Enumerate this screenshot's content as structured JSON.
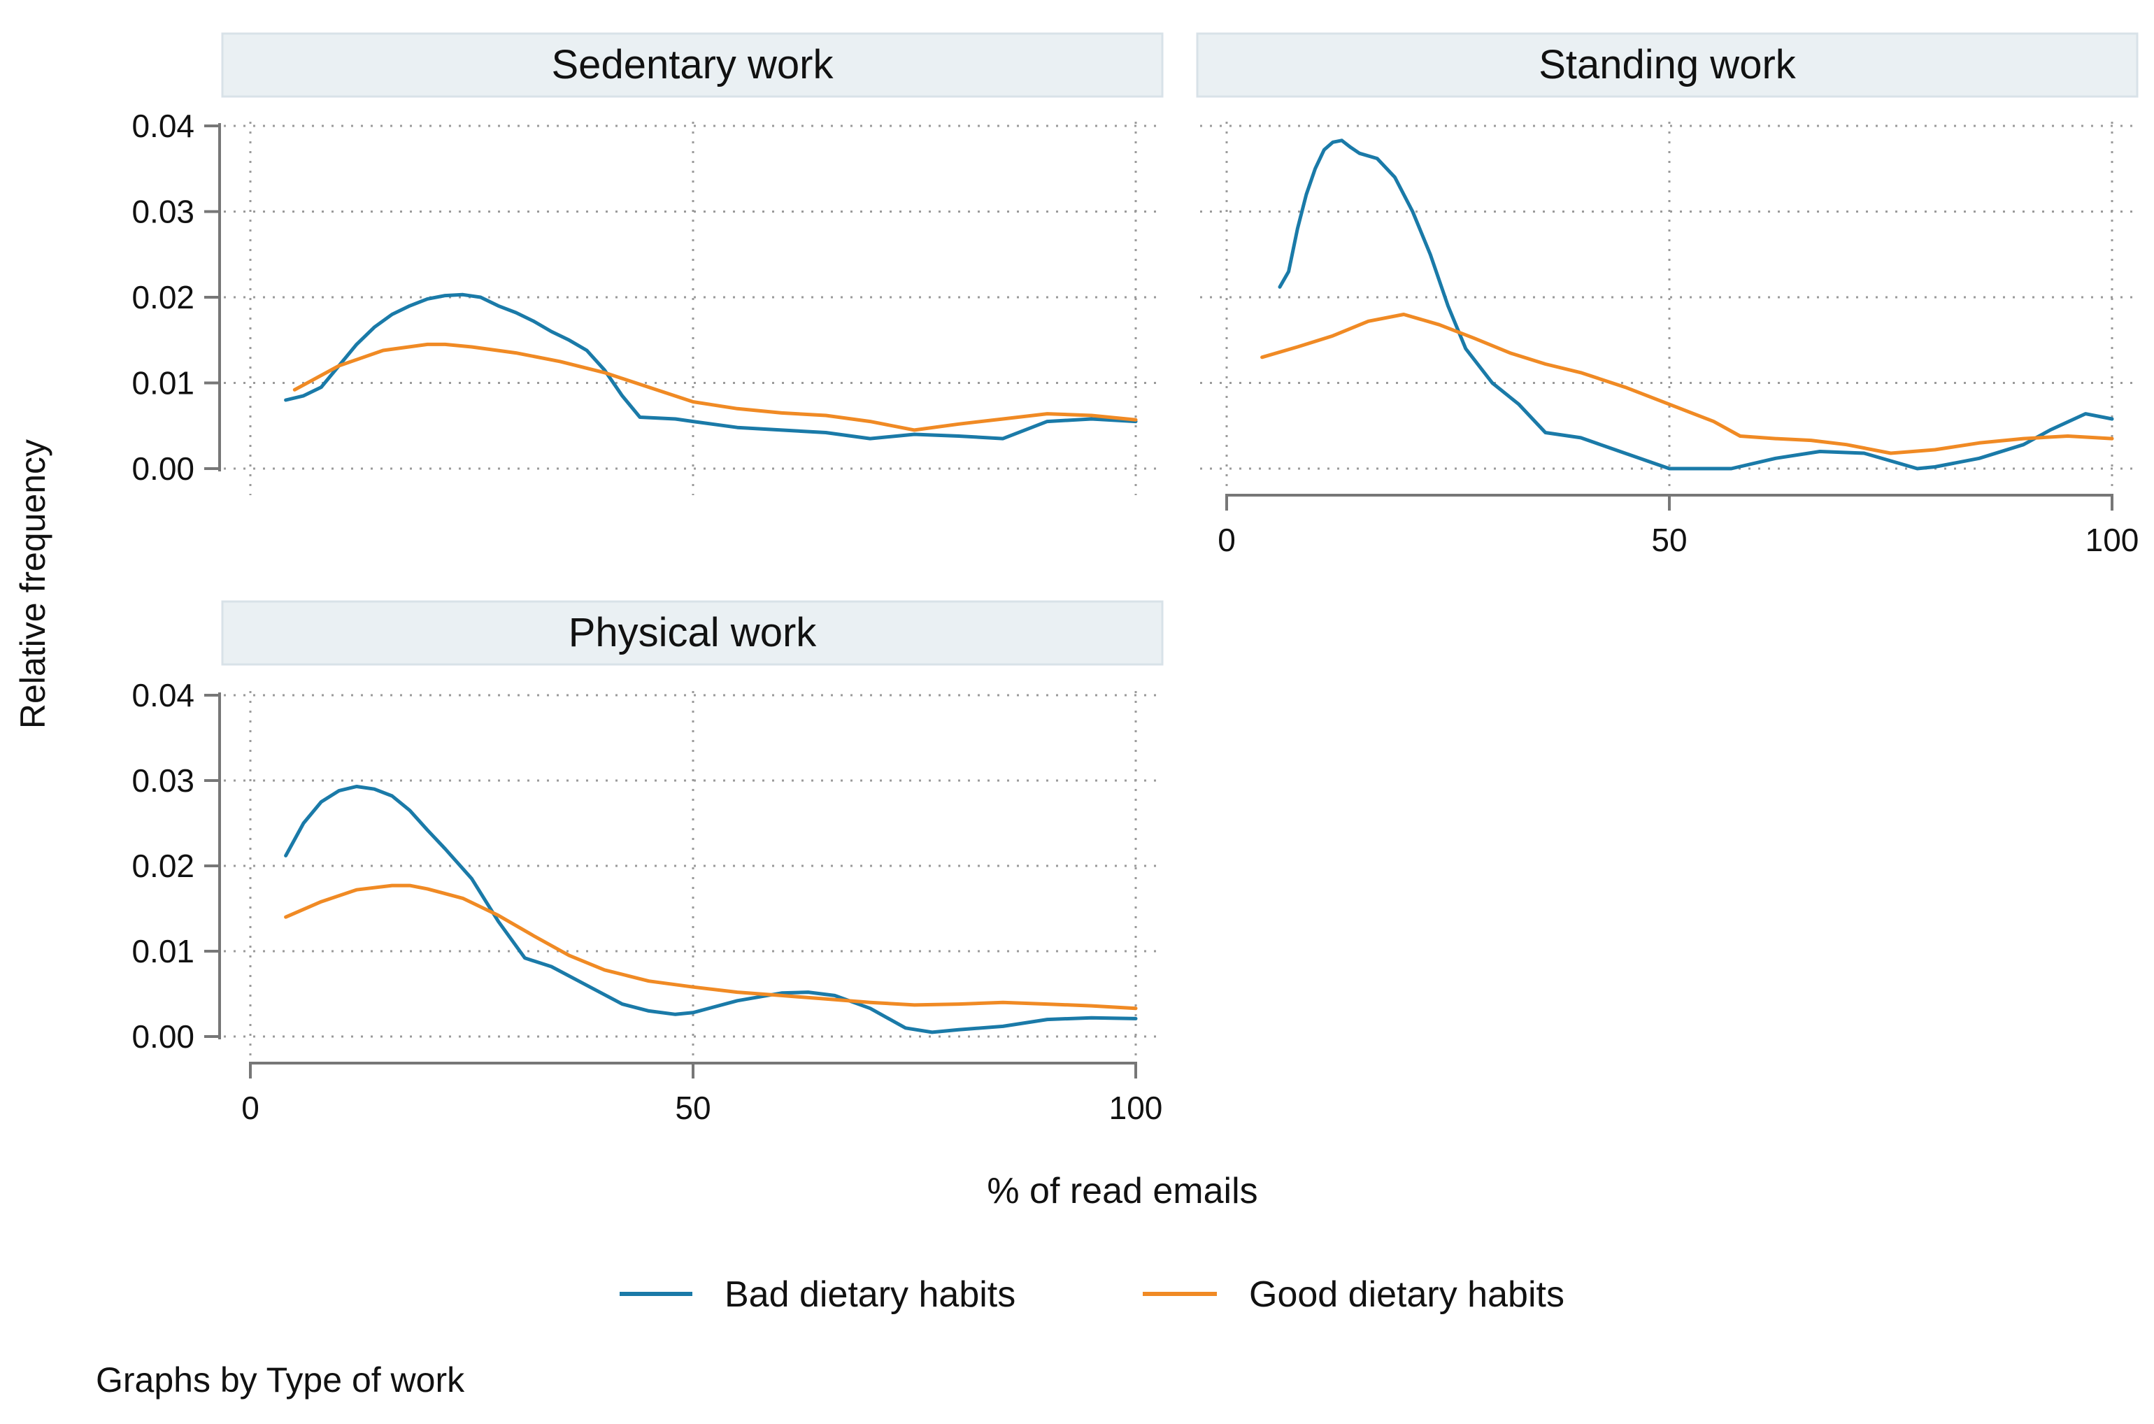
{
  "chart_data": {
    "type": "line",
    "ylabel": "Relative frequency",
    "xlabel": "% of read emails",
    "note": "Graphs by Type of work",
    "xlim": [
      0,
      100
    ],
    "ylim": [
      0,
      0.04
    ],
    "x_ticks": [
      "0",
      "50",
      "100"
    ],
    "x_tick_values": [
      0,
      50,
      100
    ],
    "y_ticks": [
      "0.00",
      "0.01",
      "0.02",
      "0.03",
      "0.04"
    ],
    "y_tick_values": [
      0,
      0.01,
      0.02,
      0.03,
      0.04
    ],
    "grid": true,
    "legend": {
      "position": "bottom",
      "items": [
        {
          "label": "Bad dietary habits",
          "color": "#1a7aa8"
        },
        {
          "label": "Good dietary habits",
          "color": "#f08a24"
        }
      ]
    },
    "panels": [
      {
        "title": "Sedentary work",
        "series": [
          {
            "name": "Bad dietary habits",
            "color": "#1a7aa8",
            "x": [
              4,
              6,
              8,
              10,
              12,
              14,
              16,
              18,
              20,
              22,
              24,
              26,
              28,
              30,
              32,
              34,
              36,
              38,
              40,
              42,
              44,
              48,
              50,
              55,
              60,
              65,
              70,
              75,
              80,
              85,
              90,
              95,
              100
            ],
            "y": [
              0.008,
              0.0085,
              0.0095,
              0.012,
              0.0145,
              0.0165,
              0.018,
              0.019,
              0.0198,
              0.0202,
              0.0203,
              0.02,
              0.019,
              0.0182,
              0.0172,
              0.016,
              0.015,
              0.0138,
              0.0115,
              0.0085,
              0.006,
              0.0058,
              0.0055,
              0.0048,
              0.0045,
              0.0042,
              0.0035,
              0.004,
              0.0038,
              0.0035,
              0.0055,
              0.0058,
              0.0055
            ]
          },
          {
            "name": "Good dietary habits",
            "color": "#f08a24",
            "x": [
              5,
              10,
              15,
              20,
              22,
              25,
              30,
              35,
              40,
              45,
              50,
              55,
              60,
              65,
              70,
              75,
              80,
              85,
              90,
              95,
              100
            ],
            "y": [
              0.0092,
              0.012,
              0.0138,
              0.0145,
              0.0145,
              0.0142,
              0.0135,
              0.0125,
              0.0112,
              0.0095,
              0.0078,
              0.007,
              0.0065,
              0.0062,
              0.0055,
              0.0045,
              0.0052,
              0.0058,
              0.0064,
              0.0062,
              0.0057
            ]
          }
        ]
      },
      {
        "title": "Standing work",
        "series": [
          {
            "name": "Bad dietary habits",
            "color": "#1a7aa8",
            "x": [
              6,
              7,
              8,
              9,
              10,
              11,
              12,
              13,
              14,
              15,
              17,
              19,
              21,
              23,
              25,
              27,
              30,
              33,
              36,
              40,
              45,
              50,
              57,
              62,
              67,
              72,
              76,
              78,
              80,
              85,
              90,
              93,
              97,
              100
            ],
            "y": [
              0.0212,
              0.023,
              0.028,
              0.032,
              0.035,
              0.0372,
              0.0381,
              0.0383,
              0.0375,
              0.0368,
              0.0362,
              0.034,
              0.03,
              0.025,
              0.019,
              0.014,
              0.01,
              0.0075,
              0.0042,
              0.0036,
              0.0018,
              0.0,
              0.0,
              0.0012,
              0.002,
              0.0018,
              0.0006,
              0.0,
              0.0002,
              0.0012,
              0.0028,
              0.0045,
              0.0064,
              0.0058
            ]
          },
          {
            "name": "Good dietary habits",
            "color": "#f08a24",
            "x": [
              4,
              8,
              12,
              16,
              20,
              24,
              28,
              32,
              36,
              40,
              45,
              50,
              55,
              58,
              62,
              66,
              70,
              75,
              80,
              85,
              90,
              95,
              100
            ],
            "y": [
              0.013,
              0.0142,
              0.0155,
              0.0172,
              0.018,
              0.0168,
              0.0152,
              0.0135,
              0.0122,
              0.0112,
              0.0095,
              0.0075,
              0.0055,
              0.0038,
              0.0035,
              0.0033,
              0.0028,
              0.0018,
              0.0022,
              0.003,
              0.0035,
              0.0038,
              0.0035
            ]
          }
        ]
      },
      {
        "title": "Physical work",
        "series": [
          {
            "name": "Bad dietary habits",
            "color": "#1a7aa8",
            "x": [
              4,
              6,
              8,
              10,
              12,
              14,
              16,
              18,
              20,
              22,
              25,
              28,
              31,
              34,
              38,
              42,
              45,
              48,
              50,
              55,
              60,
              63,
              66,
              70,
              74,
              77,
              80,
              85,
              90,
              95,
              100
            ],
            "y": [
              0.0212,
              0.025,
              0.0275,
              0.0288,
              0.0293,
              0.029,
              0.0282,
              0.0265,
              0.0242,
              0.022,
              0.0185,
              0.0135,
              0.0092,
              0.0082,
              0.006,
              0.0038,
              0.003,
              0.0026,
              0.0028,
              0.0042,
              0.0051,
              0.0052,
              0.0048,
              0.0033,
              0.001,
              0.0005,
              0.0008,
              0.0012,
              0.002,
              0.0022,
              0.0021
            ]
          },
          {
            "name": "Good dietary habits",
            "color": "#f08a24",
            "x": [
              4,
              8,
              12,
              16,
              18,
              20,
              24,
              28,
              32,
              36,
              40,
              45,
              50,
              55,
              60,
              65,
              70,
              75,
              80,
              85,
              90,
              95,
              100
            ],
            "y": [
              0.014,
              0.0158,
              0.0172,
              0.0177,
              0.0177,
              0.0173,
              0.0162,
              0.0142,
              0.0118,
              0.0095,
              0.0078,
              0.0065,
              0.0058,
              0.0052,
              0.0048,
              0.0044,
              0.004,
              0.0037,
              0.0038,
              0.004,
              0.0038,
              0.0036,
              0.0033
            ]
          }
        ]
      }
    ]
  }
}
